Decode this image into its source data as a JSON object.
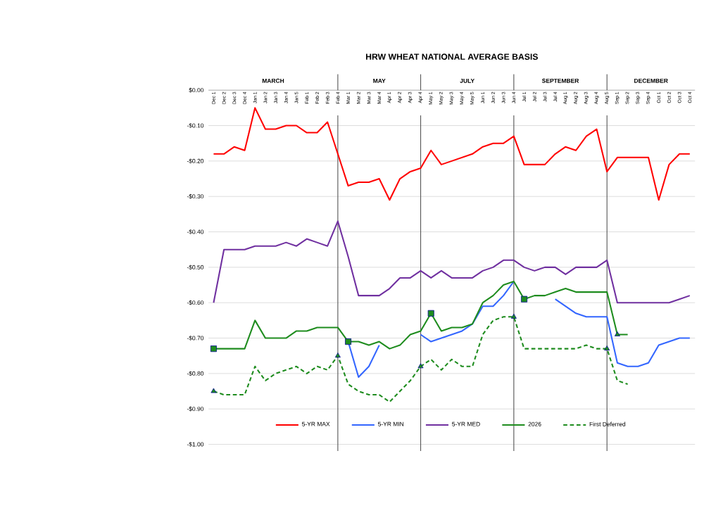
{
  "chart_data": {
    "type": "line",
    "title": "HRW WHEAT NATIONAL AVERAGE BASIS",
    "categories": [
      "Dec 1",
      "Dec 2",
      "Dec 3",
      "Dec 4",
      "Jan 1",
      "Jan 2",
      "Jan 3",
      "Jan 4",
      "Jan 5",
      "Feb 1",
      "Feb 2",
      "Feb 3",
      "Feb 4",
      "Mar 1",
      "Mar 2",
      "Mar 3",
      "Mar 4",
      "Apr 1",
      "Apr 2",
      "Apr 3",
      "Apr 4",
      "May 1",
      "May 2",
      "May 3",
      "May 4",
      "May 5",
      "Jun 1",
      "Jun 2",
      "Jun 3",
      "Jun 4",
      "Jul 1",
      "Jul 2",
      "Jul 3",
      "Jul 4",
      "Aug 1",
      "Aug 2",
      "Aug 3",
      "Aug 4",
      "Aug 5",
      "Sep 1",
      "Sep 2",
      "Sep 3",
      "Sep 4",
      "Oct 1",
      "Oct 2",
      "Oct 3",
      "Oct 4"
    ],
    "series": [
      {
        "name": "5-YR MAX",
        "color": "#ff0000",
        "values": [
          -0.18,
          -0.18,
          -0.16,
          -0.17,
          -0.05,
          -0.11,
          -0.11,
          -0.1,
          -0.1,
          -0.12,
          -0.12,
          -0.09,
          -0.18,
          -0.27,
          -0.26,
          -0.26,
          -0.25,
          -0.31,
          -0.25,
          -0.23,
          -0.22,
          -0.17,
          -0.21,
          -0.2,
          -0.19,
          -0.18,
          -0.16,
          -0.15,
          -0.15,
          -0.13,
          -0.21,
          -0.21,
          -0.21,
          -0.18,
          -0.16,
          -0.17,
          -0.13,
          -0.11,
          -0.23,
          -0.19,
          -0.19,
          -0.19,
          -0.19,
          -0.31,
          -0.21,
          -0.18,
          -0.18
        ]
      },
      {
        "name": "5-YR MIN",
        "color": "#3366ff",
        "values": [
          null,
          null,
          null,
          null,
          null,
          null,
          null,
          null,
          null,
          null,
          null,
          null,
          null,
          -0.71,
          -0.81,
          -0.78,
          -0.72,
          null,
          null,
          null,
          -0.69,
          -0.71,
          -0.7,
          -0.69,
          -0.68,
          -0.66,
          -0.61,
          -0.61,
          -0.58,
          -0.54,
          null,
          null,
          null,
          -0.59,
          -0.61,
          -0.63,
          -0.64,
          -0.64,
          -0.64,
          -0.77,
          -0.78,
          -0.78,
          -0.77,
          -0.72,
          -0.71,
          -0.7,
          -0.7
        ]
      },
      {
        "name": "5-YR MED",
        "color": "#7030a0",
        "values": [
          -0.6,
          -0.45,
          -0.45,
          -0.45,
          -0.44,
          -0.44,
          -0.44,
          -0.43,
          -0.44,
          -0.42,
          -0.43,
          -0.44,
          -0.37,
          -0.47,
          -0.58,
          -0.58,
          -0.58,
          -0.56,
          -0.53,
          -0.53,
          -0.51,
          -0.53,
          -0.51,
          -0.53,
          -0.53,
          -0.53,
          -0.51,
          -0.5,
          -0.48,
          -0.48,
          -0.5,
          -0.51,
          -0.5,
          -0.5,
          -0.52,
          -0.5,
          -0.5,
          -0.5,
          -0.48,
          -0.6,
          -0.6,
          -0.6,
          -0.6,
          -0.6,
          -0.6,
          -0.59,
          -0.58
        ]
      },
      {
        "name": "2026",
        "color": "#1e8c1e",
        "values": [
          -0.73,
          -0.73,
          -0.73,
          -0.73,
          -0.65,
          -0.7,
          -0.7,
          -0.7,
          -0.68,
          -0.68,
          -0.67,
          -0.67,
          -0.67,
          -0.71,
          -0.71,
          -0.72,
          -0.71,
          -0.73,
          -0.72,
          -0.69,
          -0.68,
          -0.63,
          -0.68,
          -0.67,
          -0.67,
          -0.66,
          -0.6,
          -0.58,
          -0.55,
          -0.54,
          -0.59,
          -0.58,
          -0.58,
          -0.57,
          -0.56,
          -0.57,
          -0.57,
          -0.57,
          -0.57,
          -0.69,
          -0.69,
          null,
          null,
          null,
          null,
          null,
          null
        ]
      },
      {
        "name": "First Deferred",
        "color": "#1e8c1e",
        "line_style": "dashed",
        "values": [
          -0.85,
          -0.86,
          -0.86,
          -0.86,
          -0.78,
          -0.82,
          -0.8,
          -0.79,
          -0.78,
          -0.8,
          -0.78,
          -0.79,
          -0.75,
          -0.83,
          -0.85,
          -0.86,
          -0.86,
          -0.88,
          -0.85,
          -0.82,
          -0.78,
          -0.76,
          -0.79,
          -0.76,
          -0.78,
          -0.78,
          -0.69,
          -0.65,
          -0.64,
          -0.64,
          -0.73,
          -0.73,
          -0.73,
          -0.73,
          -0.73,
          -0.73,
          -0.72,
          -0.73,
          -0.73,
          -0.82,
          -0.83,
          null,
          null,
          null,
          null,
          null,
          null
        ]
      },
      {
        "type": "scatter",
        "marker": "square",
        "color": "#1e8c1e",
        "values": [
          -0.73,
          null,
          null,
          null,
          null,
          null,
          null,
          null,
          null,
          null,
          null,
          null,
          null,
          -0.71,
          null,
          null,
          null,
          null,
          null,
          null,
          null,
          -0.63,
          null,
          null,
          null,
          null,
          null,
          null,
          null,
          null,
          -0.59,
          null,
          null,
          null,
          null,
          null,
          null,
          null,
          null,
          null,
          null,
          null,
          null,
          null,
          null,
          null,
          null
        ]
      },
      {
        "type": "scatter",
        "marker": "triangle",
        "color": "#1e8c1e",
        "values": [
          -0.85,
          null,
          null,
          null,
          null,
          null,
          null,
          null,
          null,
          null,
          null,
          null,
          -0.75,
          null,
          null,
          null,
          null,
          null,
          null,
          null,
          -0.78,
          null,
          null,
          null,
          null,
          null,
          null,
          null,
          null,
          -0.64,
          null,
          null,
          null,
          null,
          null,
          null,
          null,
          null,
          -0.73,
          -0.69,
          null,
          null,
          null,
          null,
          null,
          null,
          null
        ]
      }
    ],
    "ylim": [
      -1.0,
      0.0
    ],
    "yticks": [
      {
        "value": -1.0,
        "label": "-$1.00"
      },
      {
        "value": -0.9,
        "label": "-$0.90"
      },
      {
        "value": -0.8,
        "label": "-$0.80"
      },
      {
        "value": -0.7,
        "label": "-$0.70"
      },
      {
        "value": -0.6,
        "label": "-$0.60"
      },
      {
        "value": -0.5,
        "label": "-$0.50"
      },
      {
        "value": -0.4,
        "label": "-$0.40"
      },
      {
        "value": -0.3,
        "label": "-$0.30"
      },
      {
        "value": -0.2,
        "label": "-$0.20"
      },
      {
        "value": -0.1,
        "label": "-$0.10"
      },
      {
        "value": 0.0,
        "label": "$0.00"
      }
    ],
    "ref_lines": [
      {
        "axis": "x",
        "value": "Feb 4",
        "color": "#595959"
      },
      {
        "axis": "x",
        "value": "Apr 4",
        "color": "#595959"
      },
      {
        "axis": "x",
        "value": "Jun 4",
        "color": "#595959"
      },
      {
        "axis": "x",
        "value": "Aug 5",
        "color": "#595959"
      }
    ],
    "annotations": [
      "MARCH",
      "MAY",
      "JULY",
      "SEPTEMBER",
      "DECEMBER"
    ],
    "grid": "y",
    "legend": "bottom"
  }
}
